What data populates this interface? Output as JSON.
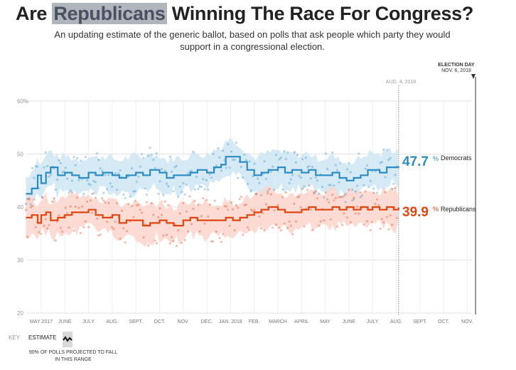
{
  "header": {
    "title_prefix": "Are",
    "title_party": "Republicans",
    "title_suffix": "Winning The Race For Congress?",
    "subtitle": "An updating estimate of the generic ballot, based on polls that ask people which party they would support in a congressional election."
  },
  "colors": {
    "democrat": "#2b8cc4",
    "democrat_band": "#cfe6f4",
    "republican": "#e0460f",
    "republican_band": "#fbd5cc"
  },
  "markers": {
    "election_day_label": "ELECTION DAY",
    "election_day_date": "NOV. 6, 2018",
    "as_of_label": "AUG. 4, 2018"
  },
  "results": {
    "dem_value": "47.7",
    "dem_suffix": "%",
    "dem_label": "Democrats",
    "rep_value": "39.9",
    "rep_suffix": "%",
    "rep_label": "Republicans"
  },
  "key": {
    "key_label": "KEY",
    "estimate_label": "ESTIMATE",
    "range_label": "90% OF POLLS PROJECTED TO FALL IN THIS RANGE"
  },
  "chart_data": {
    "type": "line",
    "title": "Are Republicans Winning The Race For Congress?",
    "xlabel": "",
    "ylabel": "",
    "ylim": [
      20,
      60
    ],
    "yticks": [
      20,
      30,
      40,
      50,
      60
    ],
    "ytick_labels": [
      "20",
      "30",
      "40",
      "50",
      "60%"
    ],
    "xlim_months": [
      0.35,
      18.2
    ],
    "xticks": [
      {
        "m": 1,
        "label": "MAY 2017"
      },
      {
        "m": 2,
        "label": "JUNE"
      },
      {
        "m": 3,
        "label": "JULY"
      },
      {
        "m": 4,
        "label": "AUG."
      },
      {
        "m": 5,
        "label": "SEPT."
      },
      {
        "m": 6,
        "label": "OCT."
      },
      {
        "m": 7,
        "label": "NOV."
      },
      {
        "m": 8,
        "label": "DEC."
      },
      {
        "m": 9,
        "label": "JAN. 2018"
      },
      {
        "m": 10,
        "label": "FEB."
      },
      {
        "m": 11,
        "label": "MARCH"
      },
      {
        "m": 12,
        "label": "APRIL"
      },
      {
        "m": 13,
        "label": "MAY"
      },
      {
        "m": 14,
        "label": "JUNE"
      },
      {
        "m": 15,
        "label": "JULY"
      },
      {
        "m": 16,
        "label": "AUG."
      },
      {
        "m": 17,
        "label": "SEPT."
      },
      {
        "m": 18,
        "label": "OCT."
      },
      {
        "m": 19,
        "label": "NOV."
      }
    ],
    "as_of_month": 16.1,
    "election_month": 19.2,
    "series": [
      {
        "name": "Democrats",
        "band_width": 6.5,
        "points": [
          [
            0.35,
            42.5
          ],
          [
            0.6,
            43.5
          ],
          [
            0.85,
            46
          ],
          [
            1.0,
            44.5
          ],
          [
            1.2,
            46.5
          ],
          [
            1.4,
            47.5
          ],
          [
            1.7,
            46
          ],
          [
            2.0,
            46.5
          ],
          [
            2.3,
            46
          ],
          [
            2.6,
            45.5
          ],
          [
            3.0,
            46.5
          ],
          [
            3.3,
            46
          ],
          [
            3.6,
            46.5
          ],
          [
            4.0,
            46
          ],
          [
            4.3,
            45.5
          ],
          [
            4.6,
            46
          ],
          [
            5.0,
            46.5
          ],
          [
            5.3,
            46
          ],
          [
            5.6,
            47
          ],
          [
            6.0,
            46.5
          ],
          [
            6.3,
            45.5
          ],
          [
            6.6,
            46
          ],
          [
            7.0,
            46
          ],
          [
            7.3,
            46.5
          ],
          [
            7.6,
            47
          ],
          [
            8.0,
            46.5
          ],
          [
            8.3,
            47.5
          ],
          [
            8.6,
            48
          ],
          [
            8.8,
            49.5
          ],
          [
            9.1,
            49.5
          ],
          [
            9.4,
            48.5
          ],
          [
            9.7,
            47
          ],
          [
            10.0,
            46
          ],
          [
            10.3,
            46.5
          ],
          [
            10.6,
            47
          ],
          [
            11.0,
            47.5
          ],
          [
            11.3,
            46.5
          ],
          [
            11.6,
            47
          ],
          [
            12.0,
            46.5
          ],
          [
            12.3,
            47
          ],
          [
            12.6,
            46
          ],
          [
            13.0,
            46
          ],
          [
            13.3,
            46.5
          ],
          [
            13.6,
            45.5
          ],
          [
            13.9,
            45
          ],
          [
            14.2,
            45.5
          ],
          [
            14.5,
            46
          ],
          [
            14.8,
            47
          ],
          [
            15.0,
            47
          ],
          [
            15.3,
            46.5
          ],
          [
            15.6,
            47.5
          ],
          [
            15.9,
            47.5
          ],
          [
            16.1,
            47.7
          ]
        ]
      },
      {
        "name": "Republicans",
        "band_width": 6.5,
        "points": [
          [
            0.35,
            38
          ],
          [
            0.6,
            38.5
          ],
          [
            0.85,
            37
          ],
          [
            1.0,
            38.5
          ],
          [
            1.2,
            39
          ],
          [
            1.4,
            37.5
          ],
          [
            1.7,
            38
          ],
          [
            2.0,
            38.5
          ],
          [
            2.3,
            39
          ],
          [
            2.6,
            39
          ],
          [
            3.0,
            39.5
          ],
          [
            3.3,
            38.5
          ],
          [
            3.6,
            38
          ],
          [
            4.0,
            38.5
          ],
          [
            4.3,
            37
          ],
          [
            4.6,
            37.5
          ],
          [
            5.0,
            37.5
          ],
          [
            5.3,
            36.5
          ],
          [
            5.6,
            37
          ],
          [
            6.0,
            37.5
          ],
          [
            6.3,
            37
          ],
          [
            6.6,
            36.5
          ],
          [
            7.0,
            37.5
          ],
          [
            7.3,
            38
          ],
          [
            7.6,
            37.5
          ],
          [
            8.0,
            37.5
          ],
          [
            8.3,
            37.5
          ],
          [
            8.6,
            37.5
          ],
          [
            8.8,
            38
          ],
          [
            9.1,
            37.5
          ],
          [
            9.4,
            38
          ],
          [
            9.7,
            38.5
          ],
          [
            10.0,
            39
          ],
          [
            10.3,
            39.5
          ],
          [
            10.6,
            40
          ],
          [
            11.0,
            39.5
          ],
          [
            11.3,
            39
          ],
          [
            11.6,
            39
          ],
          [
            12.0,
            39.5
          ],
          [
            12.3,
            40
          ],
          [
            12.6,
            39.5
          ],
          [
            13.0,
            39.5
          ],
          [
            13.3,
            40
          ],
          [
            13.6,
            39.5
          ],
          [
            13.9,
            40
          ],
          [
            14.2,
            39.5
          ],
          [
            14.5,
            40
          ],
          [
            14.8,
            39.5
          ],
          [
            15.0,
            40
          ],
          [
            15.3,
            39.5
          ],
          [
            15.6,
            40
          ],
          [
            15.9,
            39.5
          ],
          [
            16.1,
            39.9
          ]
        ]
      }
    ]
  }
}
